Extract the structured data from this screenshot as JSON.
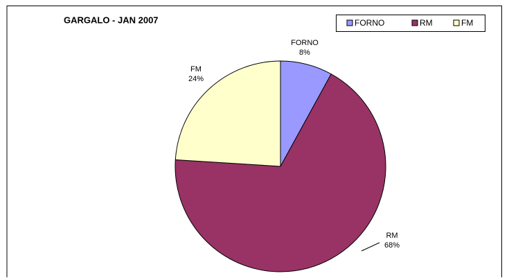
{
  "chart_data": {
    "type": "pie",
    "title": "GARGALO - JAN 2007",
    "categories": [
      "FORNO",
      "RM",
      "FM"
    ],
    "values": [
      8,
      68,
      24
    ],
    "value_labels": [
      "8%",
      "68%",
      "24%"
    ],
    "colors": [
      "#9999ff",
      "#993366",
      "#ffffcc"
    ],
    "legend": "top-right"
  }
}
